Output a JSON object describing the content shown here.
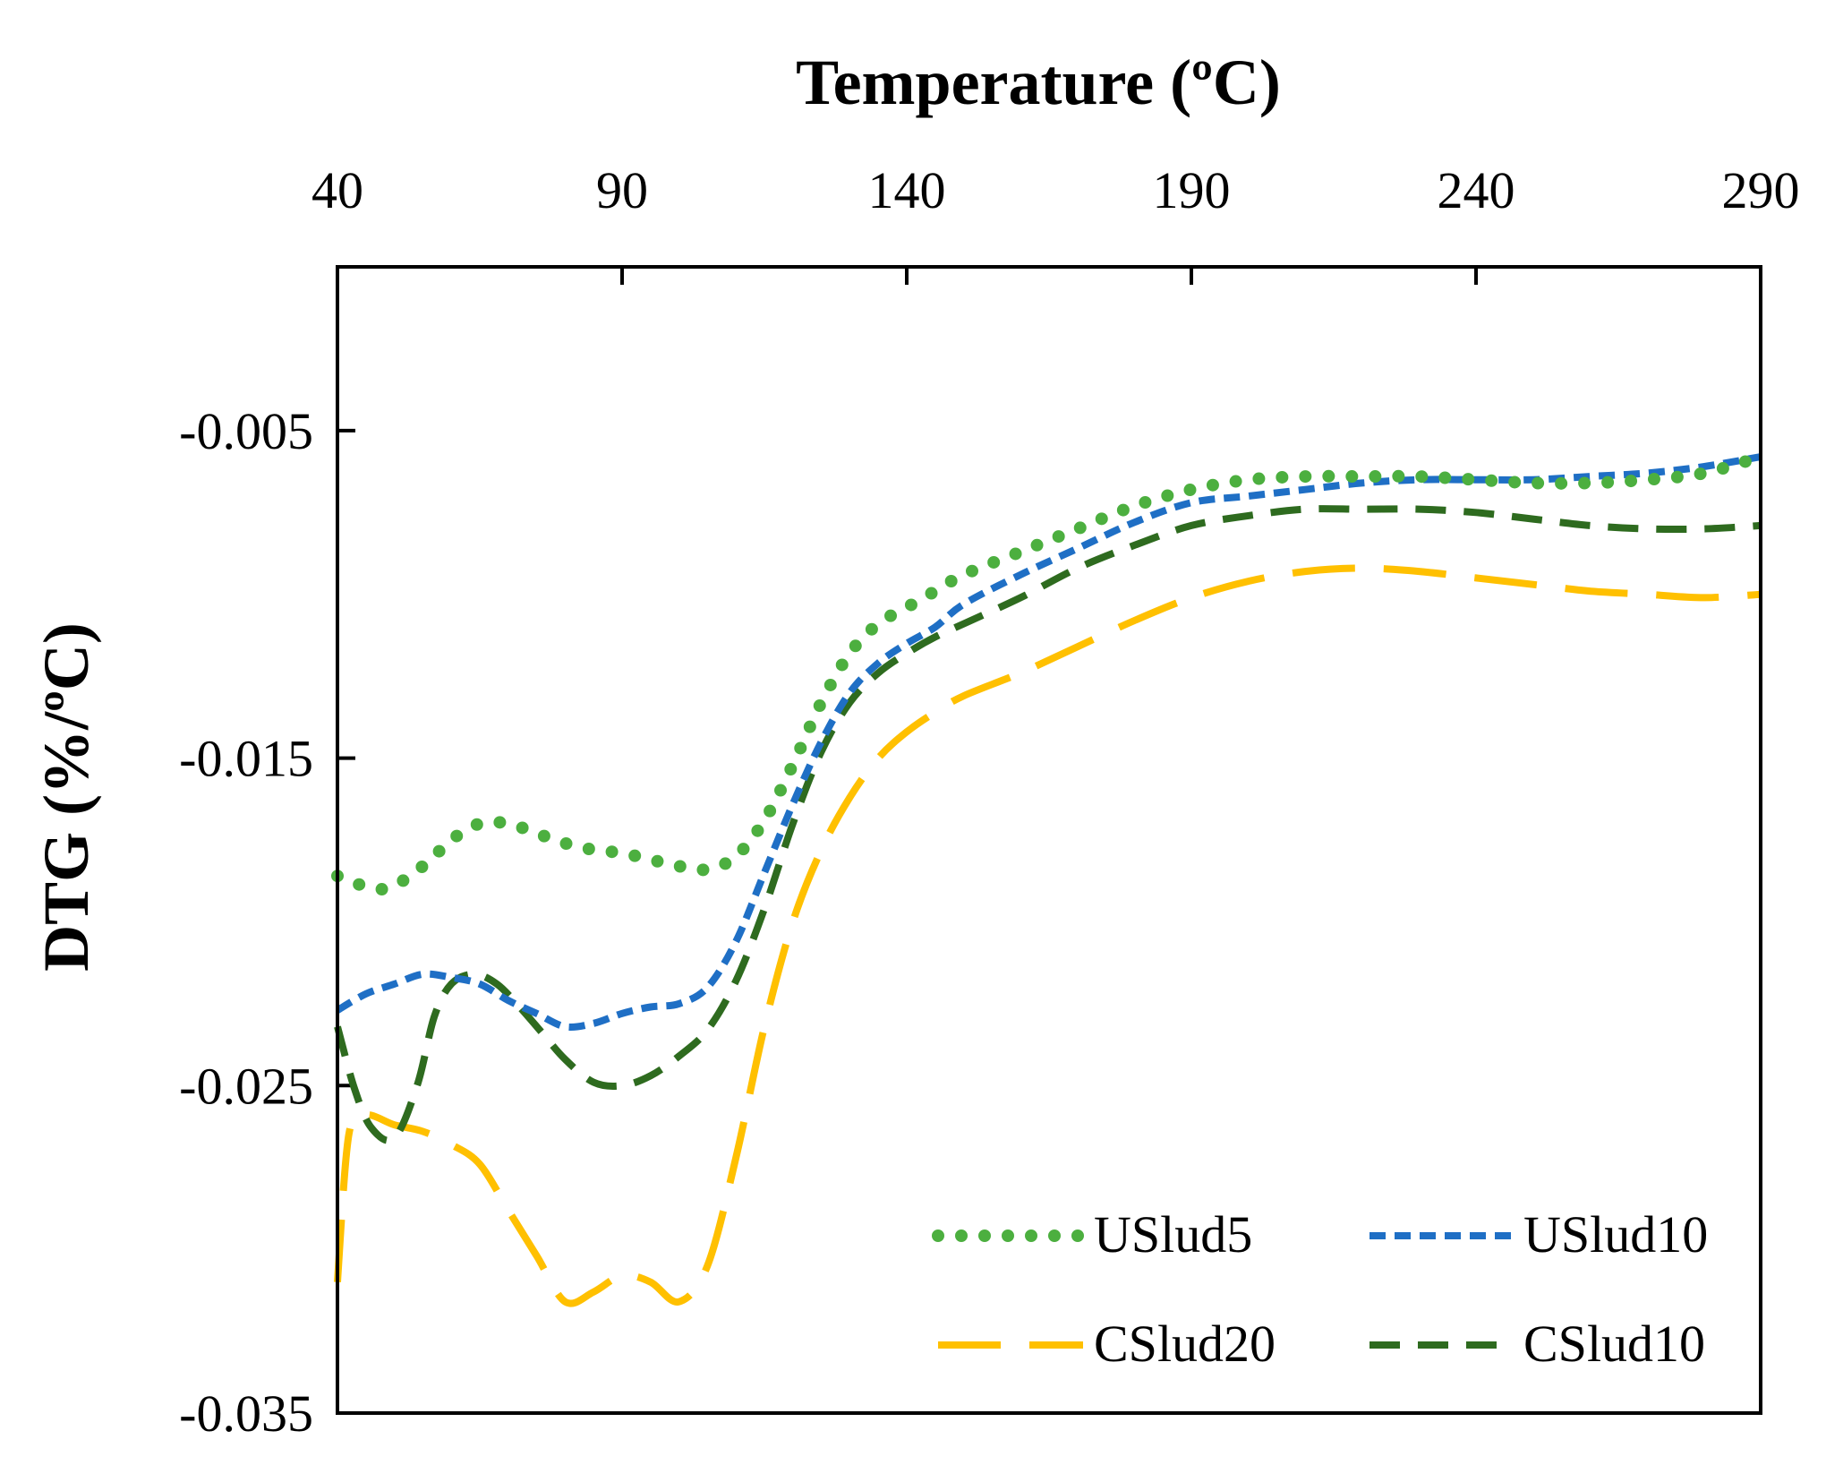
{
  "chart_data": {
    "type": "line",
    "xlabel": "Temperature (ºC)",
    "ylabel": "DTG (%/ºC)",
    "xlim": [
      40,
      290
    ],
    "ylim": [
      -0.035,
      0.0
    ],
    "x_axis_position": "top",
    "x_ticks": [
      40,
      90,
      140,
      190,
      240,
      290
    ],
    "y_ticks": [
      -0.005,
      -0.015,
      -0.025,
      -0.035
    ],
    "x_tick_labels": [
      "40",
      "90",
      "140",
      "190",
      "240",
      "290"
    ],
    "y_tick_labels": [
      "-0.005",
      "-0.015",
      "-0.025",
      "-0.035"
    ],
    "grid": false,
    "legend_position": "bottom-right",
    "series": [
      {
        "name": "USlud5",
        "color": "#4caf3f",
        "style": "dotted",
        "x": [
          40,
          48,
          55,
          60,
          65,
          70,
          75,
          80,
          85,
          90,
          95,
          100,
          105,
          110,
          115,
          120,
          125,
          130,
          135,
          140,
          145,
          150,
          160,
          170,
          180,
          190,
          200,
          210,
          220,
          230,
          240,
          250,
          260,
          270,
          280,
          290
        ],
        "y": [
          -0.0186,
          -0.019,
          -0.0183,
          -0.0175,
          -0.017,
          -0.017,
          -0.0173,
          -0.0176,
          -0.0178,
          -0.0179,
          -0.0181,
          -0.0183,
          -0.0184,
          -0.018,
          -0.0169,
          -0.0152,
          -0.0133,
          -0.0118,
          -0.0109,
          -0.0104,
          -0.0099,
          -0.0094,
          -0.0087,
          -0.008,
          -0.0073,
          -0.0068,
          -0.0065,
          -0.0064,
          -0.0064,
          -0.0064,
          -0.0065,
          -0.0066,
          -0.0066,
          -0.0065,
          -0.0063,
          -0.0058
        ]
      },
      {
        "name": "USlud10",
        "color": "#1f6fc5",
        "style": "short-dash",
        "x": [
          40,
          45,
          50,
          55,
          60,
          65,
          70,
          75,
          80,
          85,
          90,
          95,
          100,
          105,
          110,
          115,
          120,
          125,
          130,
          135,
          140,
          145,
          150,
          160,
          170,
          180,
          190,
          200,
          210,
          220,
          230,
          240,
          250,
          260,
          270,
          280,
          290
        ],
        "y": [
          -0.0227,
          -0.0222,
          -0.0219,
          -0.0216,
          -0.0217,
          -0.0219,
          -0.0224,
          -0.0228,
          -0.0232,
          -0.0231,
          -0.0228,
          -0.0226,
          -0.0225,
          -0.022,
          -0.0206,
          -0.0185,
          -0.0164,
          -0.0145,
          -0.013,
          -0.0121,
          -0.0115,
          -0.011,
          -0.0103,
          -0.0094,
          -0.0086,
          -0.0078,
          -0.0072,
          -0.007,
          -0.0068,
          -0.0066,
          -0.0065,
          -0.0065,
          -0.0065,
          -0.0064,
          -0.0063,
          -0.0061,
          -0.0058
        ]
      },
      {
        "name": "CSlud20",
        "color": "#ffc000",
        "style": "long-dash",
        "x": [
          40,
          42,
          45,
          50,
          55,
          60,
          65,
          70,
          75,
          80,
          85,
          90,
          95,
          100,
          105,
          110,
          115,
          120,
          125,
          130,
          135,
          140,
          145,
          150,
          160,
          170,
          180,
          190,
          200,
          210,
          220,
          230,
          240,
          250,
          260,
          270,
          280,
          290
        ],
        "y": [
          -0.031,
          -0.0265,
          -0.0259,
          -0.0262,
          -0.0264,
          -0.0268,
          -0.0274,
          -0.0288,
          -0.0302,
          -0.0316,
          -0.0313,
          -0.0308,
          -0.031,
          -0.0316,
          -0.0305,
          -0.0272,
          -0.0232,
          -0.02,
          -0.0178,
          -0.0162,
          -0.015,
          -0.0142,
          -0.0136,
          -0.0131,
          -0.0124,
          -0.0116,
          -0.0108,
          -0.0101,
          -0.0096,
          -0.0093,
          -0.0092,
          -0.0093,
          -0.0095,
          -0.0097,
          -0.0099,
          -0.01,
          -0.0101,
          -0.01
        ]
      },
      {
        "name": "CSlud10",
        "color": "#2e6b1f",
        "style": "dashed",
        "x": [
          40,
          43,
          46,
          50,
          54,
          57,
          60,
          64,
          68,
          72,
          76,
          80,
          85,
          90,
          95,
          100,
          105,
          110,
          115,
          120,
          125,
          130,
          135,
          140,
          145,
          150,
          160,
          170,
          180,
          190,
          200,
          210,
          220,
          230,
          240,
          250,
          260,
          270,
          280,
          290
        ],
        "y": [
          -0.0232,
          -0.0251,
          -0.0263,
          -0.0266,
          -0.025,
          -0.0229,
          -0.0219,
          -0.0216,
          -0.0219,
          -0.0226,
          -0.0234,
          -0.0242,
          -0.0249,
          -0.025,
          -0.0247,
          -0.0241,
          -0.0233,
          -0.0218,
          -0.0196,
          -0.017,
          -0.0148,
          -0.0133,
          -0.0124,
          -0.0118,
          -0.0113,
          -0.0109,
          -0.0101,
          -0.0092,
          -0.0085,
          -0.0079,
          -0.0076,
          -0.0074,
          -0.0074,
          -0.0074,
          -0.0075,
          -0.0077,
          -0.0079,
          -0.008,
          -0.008,
          -0.0079
        ]
      }
    ]
  }
}
